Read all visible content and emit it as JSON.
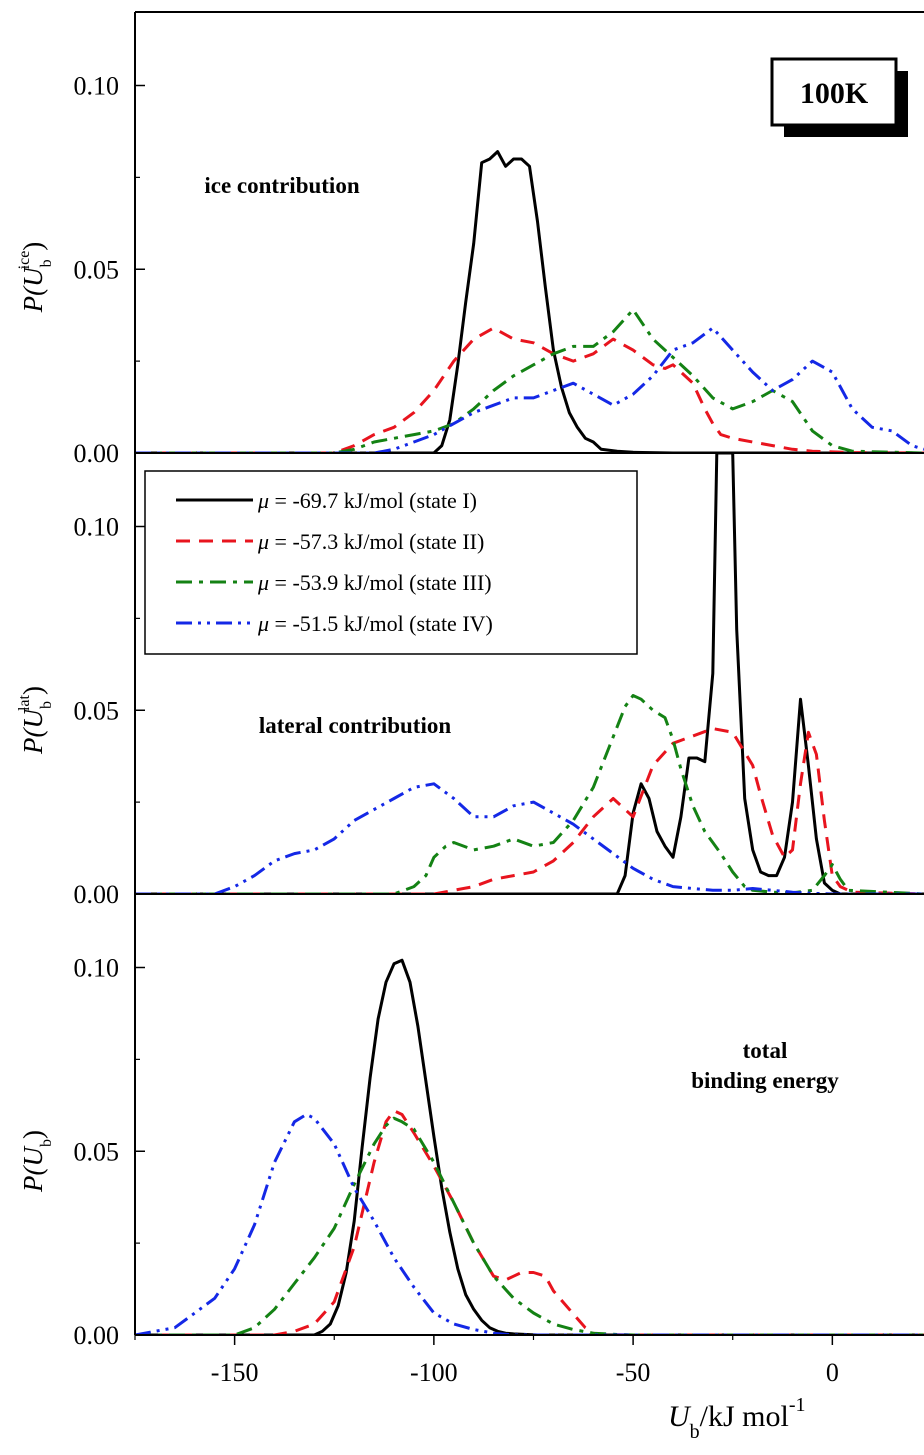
{
  "chart_data": {
    "type": "line",
    "xlabel": {
      "main": "U",
      "sub": "b",
      "rest": "/kJ mol",
      "sup": "-1"
    },
    "xlim": [
      -175,
      23
    ],
    "x_ticks": [
      -150,
      -100,
      -50,
      0
    ],
    "x_tick_labels": [
      "-150",
      "-100",
      "-50",
      "0"
    ],
    "temperature_label": "100K",
    "legend": {
      "placement": "upper-left of middle panel",
      "entries": [
        {
          "symbol": "μ",
          "text": " = -69.7 kJ/mol (state I)",
          "color": "#000000",
          "dash": "solid"
        },
        {
          "symbol": "μ",
          "text": " = -57.3 kJ/mol (state II)",
          "color": "#e8141e",
          "dash": "dash"
        },
        {
          "symbol": "μ",
          "text": " = -53.9 kJ/mol (state III)",
          "color": "#148214",
          "dash": "dashdot"
        },
        {
          "symbol": "μ",
          "text": " = -51.5 kJ/mol (state IV)",
          "color": "#1428e6",
          "dash": "dashdotdot"
        }
      ]
    },
    "panels": [
      {
        "id": "ice",
        "ylabel": {
          "main": "P(U",
          "sub": "b",
          "sup": "ice",
          "close": ")"
        },
        "annotation": [
          "ice contribution"
        ],
        "ylim": [
          0,
          0.12
        ],
        "y_ticks": [
          0,
          0.05,
          0.1
        ],
        "y_tick_labels": [
          "0.00",
          "0.05",
          "0.10"
        ],
        "series": [
          {
            "color": "#000000",
            "dash": "solid",
            "x": [
              -175,
              -100,
              -98,
              -96,
              -94,
              -92,
              -90,
              -88,
              -86,
              -84,
              -82,
              -80,
              -78,
              -76,
              -74,
              -72,
              -70,
              -68,
              -66,
              -64,
              -62,
              -60,
              -58,
              -54,
              -50,
              -40,
              23
            ],
            "y": [
              0,
              0,
              0.002,
              0.009,
              0.024,
              0.041,
              0.057,
              0.079,
              0.08,
              0.082,
              0.078,
              0.08,
              0.08,
              0.078,
              0.063,
              0.045,
              0.028,
              0.018,
              0.011,
              0.007,
              0.004,
              0.003,
              0.001,
              0.0005,
              0.0002,
              0,
              0
            ]
          },
          {
            "color": "#e8141e",
            "dash": "dash",
            "x": [
              -175,
              -125,
              -120,
              -115,
              -110,
              -105,
              -100,
              -95,
              -90,
              -85,
              -80,
              -75,
              -70,
              -65,
              -60,
              -55,
              -50,
              -45,
              -42,
              -40,
              -38,
              -35,
              -32,
              -30,
              -28,
              -25,
              -20,
              -15,
              -10,
              -5,
              0,
              5,
              23
            ],
            "y": [
              0,
              0,
              0.002,
              0.005,
              0.007,
              0.011,
              0.017,
              0.025,
              0.031,
              0.034,
              0.031,
              0.03,
              0.027,
              0.025,
              0.027,
              0.031,
              0.028,
              0.024,
              0.023,
              0.024,
              0.022,
              0.019,
              0.012,
              0.008,
              0.005,
              0.004,
              0.003,
              0.002,
              0.001,
              0.0005,
              0.0003,
              0.0001,
              0
            ]
          },
          {
            "color": "#148214",
            "dash": "dashdot",
            "x": [
              -175,
              -125,
              -120,
              -115,
              -110,
              -105,
              -100,
              -95,
              -90,
              -85,
              -80,
              -75,
              -70,
              -65,
              -60,
              -55,
              -50,
              -45,
              -40,
              -35,
              -30,
              -25,
              -20,
              -15,
              -10,
              -5,
              0,
              5,
              23
            ],
            "y": [
              0,
              0,
              0.001,
              0.003,
              0.004,
              0.005,
              0.006,
              0.008,
              0.012,
              0.017,
              0.021,
              0.024,
              0.027,
              0.029,
              0.029,
              0.033,
              0.039,
              0.031,
              0.026,
              0.021,
              0.015,
              0.012,
              0.014,
              0.017,
              0.014,
              0.006,
              0.002,
              0.0005,
              0
            ]
          },
          {
            "color": "#1428e6",
            "dash": "dashdotdot",
            "x": [
              -175,
              -115,
              -110,
              -105,
              -100,
              -95,
              -90,
              -85,
              -80,
              -75,
              -70,
              -65,
              -60,
              -55,
              -50,
              -45,
              -40,
              -35,
              -30,
              -25,
              -20,
              -15,
              -10,
              -5,
              0,
              5,
              10,
              15,
              20,
              23
            ],
            "y": [
              0,
              0,
              0.001,
              0.003,
              0.005,
              0.008,
              0.011,
              0.013,
              0.015,
              0.015,
              0.017,
              0.019,
              0.016,
              0.013,
              0.016,
              0.021,
              0.028,
              0.03,
              0.034,
              0.028,
              0.022,
              0.017,
              0.02,
              0.025,
              0.022,
              0.012,
              0.007,
              0.006,
              0.002,
              0.001
            ]
          }
        ]
      },
      {
        "id": "lat",
        "ylabel": {
          "main": "P(U",
          "sub": "b",
          "sup": "lat",
          "close": ")"
        },
        "annotation": [
          "lateral contribution"
        ],
        "ylim": [
          0,
          0.12
        ],
        "y_ticks": [
          0,
          0.05,
          0.1
        ],
        "y_tick_labels": [
          "0.00",
          "0.05",
          "0.10"
        ],
        "series": [
          {
            "color": "#000000",
            "dash": "solid",
            "x": [
              -175,
              -54,
              -52,
              -50,
              -48,
              -46,
              -44,
              -42,
              -40,
              -38,
              -36,
              -34,
              -32,
              -30,
              -29,
              -28,
              -27,
              -26,
              -25,
              -24,
              -22,
              -20,
              -18,
              -16,
              -14,
              -12,
              -10,
              -8,
              -6,
              -4,
              -2,
              0,
              2,
              23
            ],
            "y": [
              0,
              0,
              0.005,
              0.022,
              0.03,
              0.026,
              0.017,
              0.013,
              0.01,
              0.021,
              0.037,
              0.037,
              0.036,
              0.06,
              0.12,
              0.12,
              0.12,
              0.12,
              0.12,
              0.072,
              0.026,
              0.012,
              0.006,
              0.005,
              0.005,
              0.01,
              0.025,
              0.053,
              0.035,
              0.015,
              0.003,
              0.001,
              0,
              0
            ]
          },
          {
            "color": "#e8141e",
            "dash": "dash",
            "x": [
              -175,
              -100,
              -95,
              -90,
              -85,
              -80,
              -75,
              -70,
              -65,
              -60,
              -55,
              -50,
              -45,
              -40,
              -35,
              -30,
              -25,
              -20,
              -18,
              -15,
              -12,
              -10,
              -8,
              -6,
              -4,
              -2,
              0,
              2,
              5,
              23
            ],
            "y": [
              0,
              0,
              0.001,
              0.002,
              0.004,
              0.005,
              0.006,
              0.009,
              0.014,
              0.021,
              0.026,
              0.021,
              0.035,
              0.041,
              0.043,
              0.045,
              0.044,
              0.035,
              0.027,
              0.016,
              0.01,
              0.012,
              0.03,
              0.044,
              0.038,
              0.02,
              0.005,
              0.002,
              0.0005,
              0
            ]
          },
          {
            "color": "#148214",
            "dash": "dashdot",
            "x": [
              -175,
              -110,
              -105,
              -102,
              -100,
              -97,
              -95,
              -90,
              -85,
              -80,
              -75,
              -70,
              -65,
              -60,
              -56,
              -52,
              -50,
              -48,
              -45,
              -42,
              -40,
              -38,
              -35,
              -32,
              -30,
              -28,
              -25,
              -22,
              -20,
              -15,
              -10,
              -5,
              -2,
              0,
              2,
              4,
              23
            ],
            "y": [
              0,
              0,
              0.002,
              0.005,
              0.01,
              0.013,
              0.014,
              0.012,
              0.013,
              0.015,
              0.013,
              0.014,
              0.02,
              0.029,
              0.04,
              0.051,
              0.054,
              0.053,
              0.05,
              0.048,
              0.042,
              0.034,
              0.024,
              0.017,
              0.014,
              0.011,
              0.006,
              0.002,
              0.001,
              0.0005,
              0.0003,
              0.001,
              0.005,
              0.008,
              0.004,
              0.001,
              0
            ]
          },
          {
            "color": "#1428e6",
            "dash": "dashdotdot",
            "x": [
              -175,
              -155,
              -150,
              -145,
              -140,
              -135,
              -130,
              -125,
              -120,
              -115,
              -110,
              -105,
              -100,
              -95,
              -90,
              -85,
              -80,
              -75,
              -70,
              -65,
              -60,
              -55,
              -50,
              -45,
              -40,
              -35,
              -30,
              -25,
              -20,
              -15,
              -10,
              -5,
              0,
              5,
              23
            ],
            "y": [
              0,
              0,
              0.002,
              0.005,
              0.009,
              0.011,
              0.012,
              0.015,
              0.02,
              0.023,
              0.026,
              0.029,
              0.03,
              0.026,
              0.021,
              0.021,
              0.024,
              0.025,
              0.022,
              0.019,
              0.015,
              0.011,
              0.007,
              0.004,
              0.002,
              0.0015,
              0.001,
              0.001,
              0.0015,
              0.001,
              0.0005,
              0.0002,
              0,
              0,
              0
            ]
          }
        ]
      },
      {
        "id": "total",
        "ylabel": {
          "main": "P(U",
          "sub": "b",
          "sup": "",
          "close": ")"
        },
        "annotation": [
          "total",
          "binding energy"
        ],
        "ylim": [
          0,
          0.12
        ],
        "y_ticks": [
          0,
          0.05,
          0.1
        ],
        "y_tick_labels": [
          "0.00",
          "0.05",
          "0.10"
        ],
        "series": [
          {
            "color": "#000000",
            "dash": "solid",
            "x": [
              -175,
              -130,
              -128,
              -126,
              -124,
              -122,
              -120,
              -118,
              -116,
              -114,
              -112,
              -110,
              -108,
              -106,
              -104,
              -102,
              -100,
              -98,
              -96,
              -94,
              -92,
              -90,
              -88,
              -86,
              -84,
              -82,
              -80,
              -78,
              -76,
              -74,
              -70,
              23
            ],
            "y": [
              0,
              0,
              0.001,
              0.003,
              0.008,
              0.017,
              0.031,
              0.051,
              0.07,
              0.086,
              0.096,
              0.101,
              0.102,
              0.096,
              0.084,
              0.069,
              0.054,
              0.04,
              0.028,
              0.018,
              0.011,
              0.007,
              0.004,
              0.002,
              0.001,
              0.0005,
              0.0003,
              0.0002,
              0.0001,
              0,
              0,
              0
            ]
          },
          {
            "color": "#e8141e",
            "dash": "dash",
            "x": [
              -175,
              -140,
              -135,
              -130,
              -125,
              -120,
              -115,
              -112,
              -110,
              -108,
              -105,
              -100,
              -95,
              -90,
              -85,
              -82,
              -80,
              -78,
              -75,
              -72,
              -70,
              -66,
              -62,
              -60,
              -58,
              -50,
              23
            ],
            "y": [
              0,
              0,
              0.001,
              0.003,
              0.009,
              0.024,
              0.047,
              0.058,
              0.061,
              0.06,
              0.055,
              0.046,
              0.036,
              0.025,
              0.016,
              0.015,
              0.016,
              0.017,
              0.017,
              0.016,
              0.012,
              0.007,
              0.002,
              0.0005,
              0.0001,
              0,
              0
            ]
          },
          {
            "color": "#148214",
            "dash": "dashdot",
            "x": [
              -175,
              -150,
              -145,
              -140,
              -135,
              -130,
              -125,
              -120,
              -115,
              -112,
              -110,
              -108,
              -105,
              -100,
              -95,
              -90,
              -85,
              -80,
              -75,
              -70,
              -65,
              -60,
              -55,
              -50,
              23
            ],
            "y": [
              0,
              0,
              0.002,
              0.007,
              0.014,
              0.021,
              0.029,
              0.041,
              0.052,
              0.057,
              0.059,
              0.058,
              0.056,
              0.047,
              0.036,
              0.025,
              0.016,
              0.01,
              0.006,
              0.003,
              0.0015,
              0.0005,
              0.0002,
              0,
              0
            ]
          },
          {
            "color": "#1428e6",
            "dash": "dashdotdot",
            "x": [
              -175,
              -170,
              -165,
              -160,
              -155,
              -150,
              -145,
              -140,
              -135,
              -132,
              -130,
              -125,
              -120,
              -115,
              -110,
              -105,
              -100,
              -95,
              -90,
              -85,
              -80,
              23
            ],
            "y": [
              0,
              0.001,
              0.002,
              0.006,
              0.01,
              0.018,
              0.03,
              0.047,
              0.058,
              0.06,
              0.059,
              0.052,
              0.04,
              0.031,
              0.021,
              0.013,
              0.006,
              0.003,
              0.0015,
              0.0005,
              0,
              0
            ]
          }
        ]
      }
    ]
  }
}
